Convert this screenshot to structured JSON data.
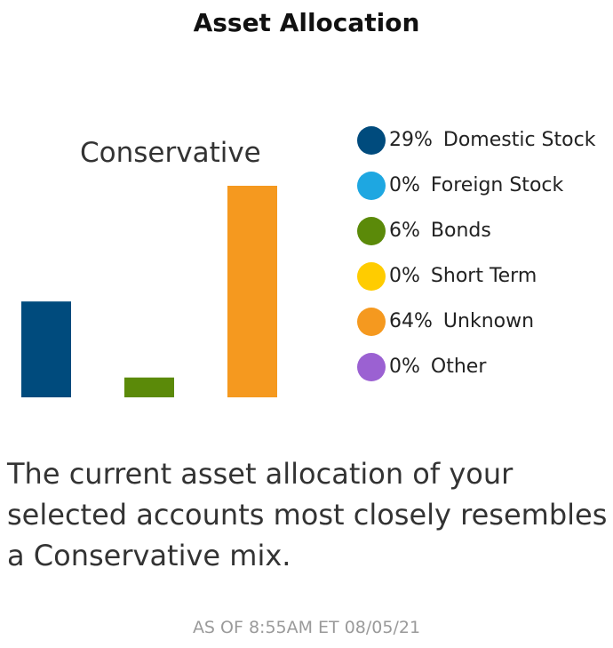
{
  "header": {
    "title": "Asset Allocation"
  },
  "chart_data": {
    "type": "bar",
    "title": "Conservative",
    "categories": [
      "Domestic Stock",
      "Foreign Stock",
      "Bonds",
      "Short Term",
      "Unknown",
      "Other"
    ],
    "values": [
      29,
      0,
      6,
      0,
      64,
      0
    ],
    "colors": [
      "#004b7d",
      "#1ea7e1",
      "#5b8a09",
      "#ffcc00",
      "#f5991f",
      "#9b61d2"
    ],
    "unit": "%",
    "ylim": [
      0,
      64
    ],
    "grid": false,
    "legend_position": "right"
  },
  "legend": [
    {
      "pct": "29%",
      "name": "Domestic Stock",
      "color": "#004b7d"
    },
    {
      "pct": "0%",
      "name": "Foreign Stock",
      "color": "#1ea7e1"
    },
    {
      "pct": "6%",
      "name": "Bonds",
      "color": "#5b8a09"
    },
    {
      "pct": "0%",
      "name": "Short Term",
      "color": "#ffcc00"
    },
    {
      "pct": "64%",
      "name": "Unknown",
      "color": "#f5991f"
    },
    {
      "pct": "0%",
      "name": "Other",
      "color": "#9b61d2"
    }
  ],
  "summary": {
    "text": "The current asset allocation of your selected accounts most closely resembles a Conservative mix."
  },
  "footer": {
    "as_of": "AS OF 8:55AM ET 08/05/21"
  }
}
